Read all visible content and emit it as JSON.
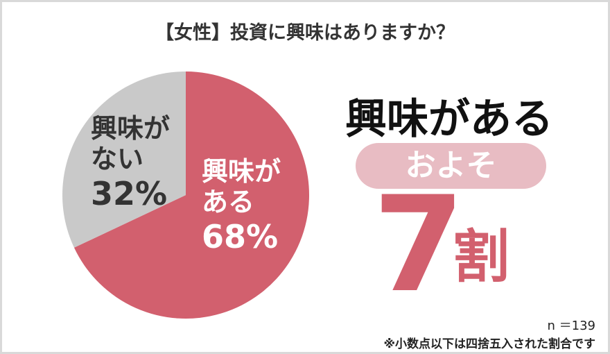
{
  "chart_data": {
    "type": "pie",
    "title": "【女性】投資に興味はありますか？",
    "categories": [
      "興味がある",
      "興味がない"
    ],
    "values": [
      68,
      32
    ],
    "value_labels": [
      "68%",
      "32%"
    ],
    "colors": [
      "#d2606e",
      "#c9c9c9"
    ],
    "headline": "興味がある",
    "badge": "およそ",
    "figure": "7",
    "figure_unit": "割",
    "sample": "n ＝139",
    "note": "※小数点以下は四捨五入された割合です"
  }
}
